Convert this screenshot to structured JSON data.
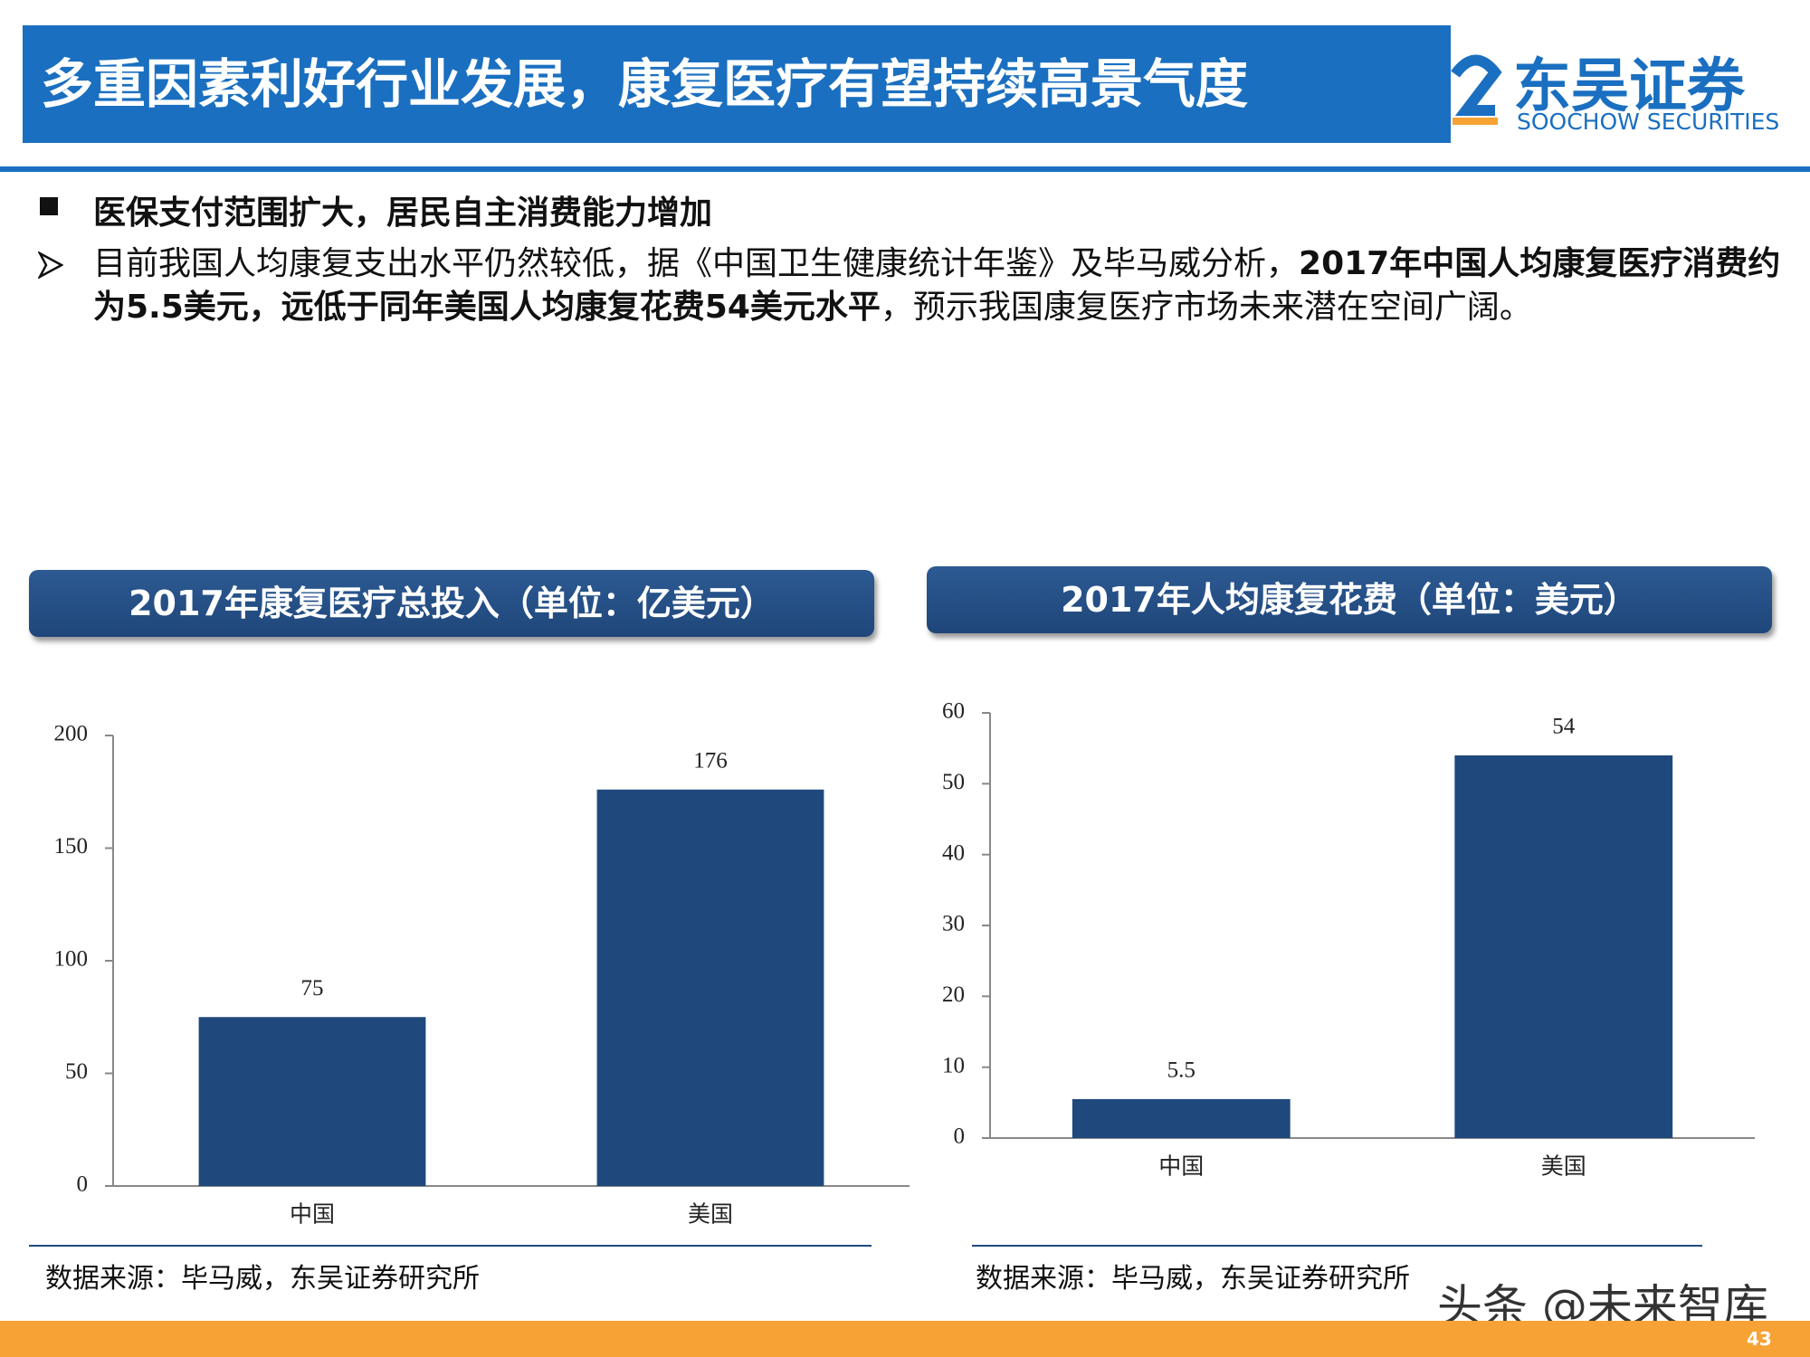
{
  "header": {
    "title": "多重因素利好行业发展，康复医疗有望持续高景气度",
    "logo_cn": "东吴证券",
    "logo_en": "SOOCHOW SECURITIES"
  },
  "section": {
    "heading": "医保支付范围扩大，居民自主消费能力增加",
    "paragraph": [
      {
        "text": "目前我国人均康复支出水平仍然较低，据《中国卫生健康统计年鉴》及毕马威分析，",
        "bold": false
      },
      {
        "text": "2017年中国人均康复医疗消费约为5.5美元，远低于同年美国人均康复花费54美元水平",
        "bold": true
      },
      {
        "text": "，预示我国康复医疗市场未来潜在空间广阔。",
        "bold": false
      }
    ]
  },
  "chart_data": [
    {
      "type": "bar",
      "title": "2017年康复医疗总投入（单位：亿美元）",
      "categories": [
        "中国",
        "美国"
      ],
      "values": [
        75,
        176
      ],
      "color": "#1f497d",
      "ylim": [
        0,
        200
      ],
      "yticks": [
        0,
        50,
        100,
        150,
        200
      ],
      "source": "数据来源：毕马威，东吴证券研究所"
    },
    {
      "type": "bar",
      "title": "2017年人均康复花费（单位：美元）",
      "categories": [
        "中国",
        "美国"
      ],
      "values": [
        5.5,
        54
      ],
      "color": "#1f497d",
      "ylim": [
        0,
        60
      ],
      "yticks": [
        0,
        10,
        20,
        30,
        40,
        50,
        60
      ],
      "source": "数据来源：毕马威，东吴证券研究所"
    }
  ],
  "watermark": "头条 @未来智库",
  "footer": {
    "page": "43"
  }
}
